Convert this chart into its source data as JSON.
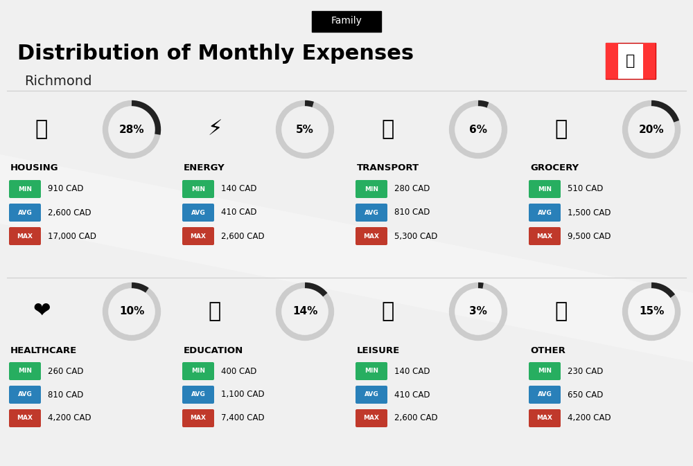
{
  "title": "Distribution of Monthly Expenses",
  "subtitle": "Richmond",
  "category_label": "Family",
  "bg_color": "#f0f0f0",
  "categories": [
    {
      "name": "HOUSING",
      "pct": 28,
      "min": "910 CAD",
      "avg": "2,600 CAD",
      "max": "17,000 CAD",
      "emoji": "🏗",
      "row": 0,
      "col": 0
    },
    {
      "name": "ENERGY",
      "pct": 5,
      "min": "140 CAD",
      "avg": "410 CAD",
      "max": "2,600 CAD",
      "emoji": "⚡",
      "row": 0,
      "col": 1
    },
    {
      "name": "TRANSPORT",
      "pct": 6,
      "min": "280 CAD",
      "avg": "810 CAD",
      "max": "5,300 CAD",
      "emoji": "🚌",
      "row": 0,
      "col": 2
    },
    {
      "name": "GROCERY",
      "pct": 20,
      "min": "510 CAD",
      "avg": "1,500 CAD",
      "max": "9,500 CAD",
      "emoji": "🛒",
      "row": 0,
      "col": 3
    },
    {
      "name": "HEALTHCARE",
      "pct": 10,
      "min": "260 CAD",
      "avg": "810 CAD",
      "max": "4,200 CAD",
      "emoji": "❤",
      "row": 1,
      "col": 0
    },
    {
      "name": "EDUCATION",
      "pct": 14,
      "min": "400 CAD",
      "avg": "1,100 CAD",
      "max": "7,400 CAD",
      "emoji": "🎓",
      "row": 1,
      "col": 1
    },
    {
      "name": "LEISURE",
      "pct": 3,
      "min": "140 CAD",
      "avg": "410 CAD",
      "max": "2,600 CAD",
      "emoji": "🛍",
      "row": 1,
      "col": 2
    },
    {
      "name": "OTHER",
      "pct": 15,
      "min": "230 CAD",
      "avg": "650 CAD",
      "max": "4,200 CAD",
      "emoji": "💰",
      "row": 1,
      "col": 3
    }
  ],
  "min_color": "#2ecc40",
  "avg_color": "#3498db",
  "max_color": "#e74c3c",
  "donut_dark": "#222222",
  "donut_light": "#cccccc",
  "label_colors": {
    "MIN": "#27ae60",
    "AVG": "#2980b9",
    "MAX": "#c0392b"
  }
}
